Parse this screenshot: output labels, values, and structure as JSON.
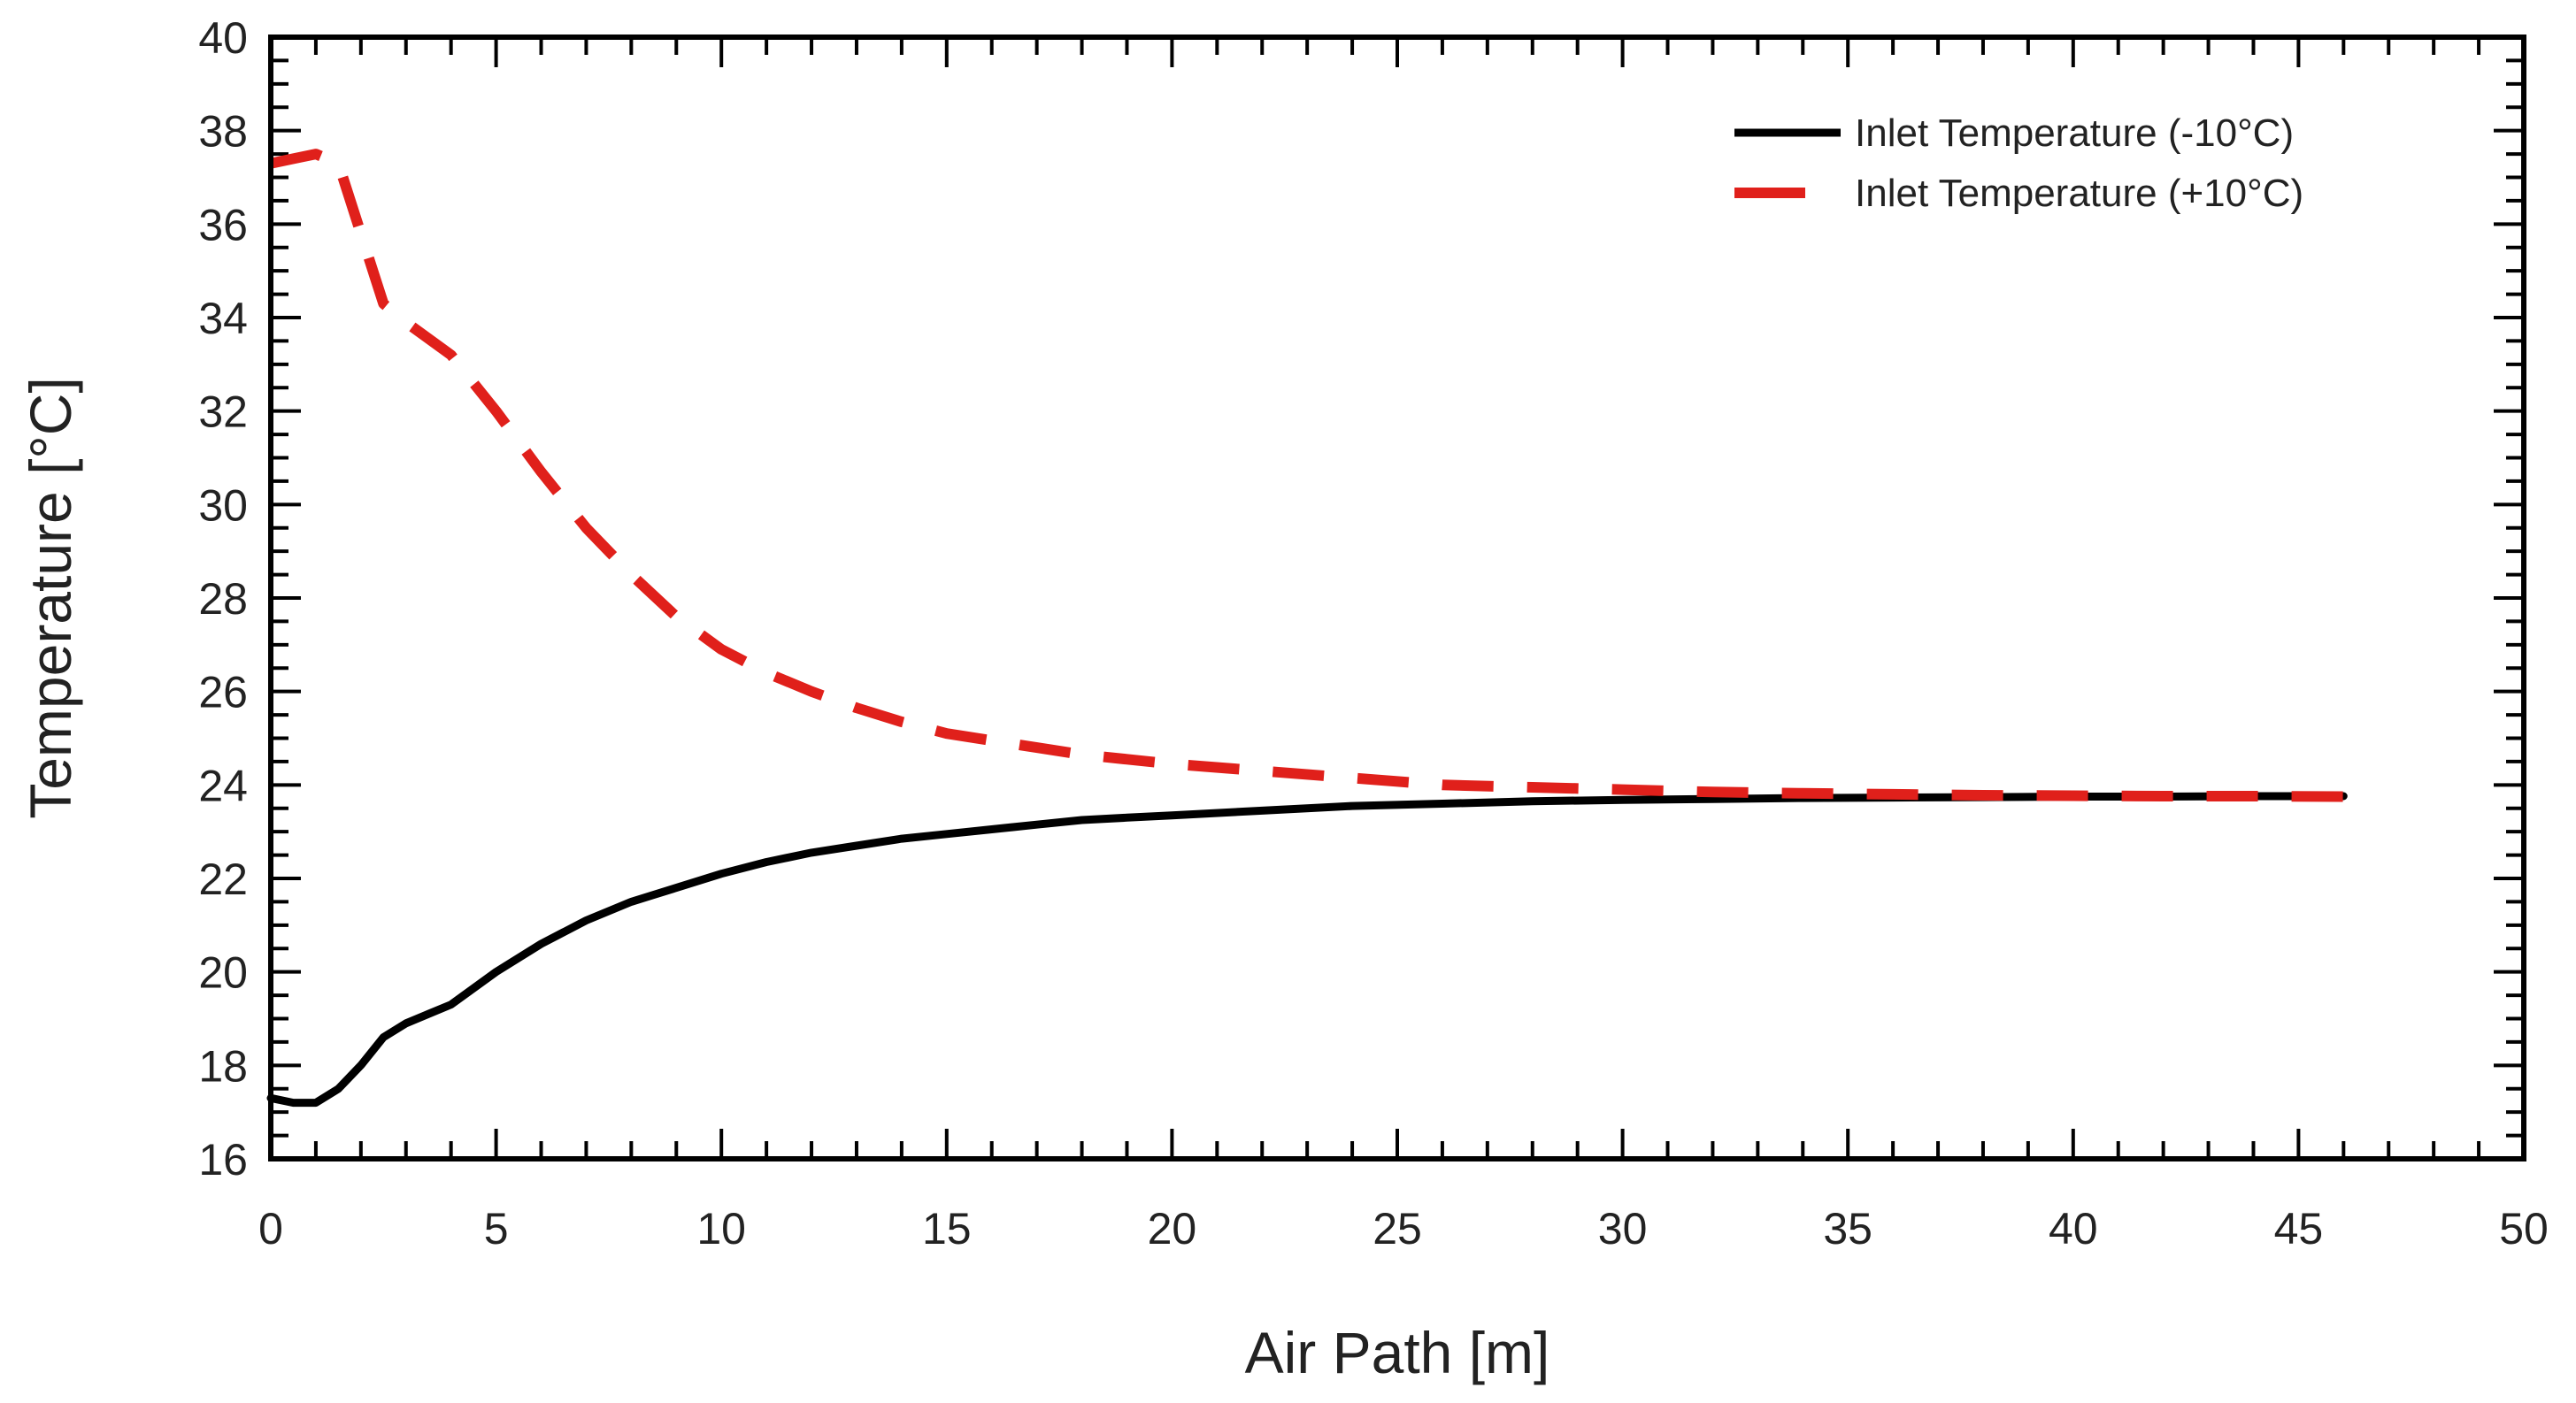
{
  "chart_data": {
    "type": "line",
    "title": "",
    "xlabel": "Air Path [m]",
    "ylabel": "Temperature [°C]",
    "xlim": [
      0,
      50
    ],
    "ylim": [
      16,
      40
    ],
    "x_ticks": [
      0,
      5,
      10,
      15,
      20,
      25,
      30,
      35,
      40,
      45,
      50
    ],
    "y_ticks": [
      16,
      18,
      20,
      22,
      24,
      26,
      28,
      30,
      32,
      34,
      36,
      38,
      40
    ],
    "x_minor_step": 1,
    "y_minor_step": 0.5,
    "grid": false,
    "legend_position": "top-right",
    "series": [
      {
        "name": "Inlet Temperature (-10°C)",
        "color": "#000000",
        "style": "solid",
        "x": [
          0,
          0.5,
          1,
          1.5,
          2,
          2.5,
          3,
          3.5,
          4,
          5,
          6,
          7,
          8,
          9,
          10,
          11,
          12,
          13,
          14,
          15,
          16,
          17,
          18,
          19,
          20,
          22,
          24,
          26,
          28,
          30,
          32,
          34,
          36,
          38,
          40,
          42,
          44,
          46
        ],
        "values": [
          17.3,
          17.2,
          17.2,
          17.5,
          18.0,
          18.6,
          18.9,
          19.1,
          19.3,
          20.0,
          20.6,
          21.1,
          21.5,
          21.8,
          22.1,
          22.35,
          22.55,
          22.7,
          22.85,
          22.95,
          23.05,
          23.15,
          23.25,
          23.3,
          23.35,
          23.45,
          23.55,
          23.6,
          23.65,
          23.68,
          23.7,
          23.72,
          23.73,
          23.74,
          23.75,
          23.75,
          23.76,
          23.76
        ]
      },
      {
        "name": "Inlet Temperature (+10°C)",
        "color": "#e0201b",
        "style": "dashed",
        "x": [
          0,
          0.5,
          1,
          1.5,
          2,
          2.5,
          3,
          4,
          5,
          6,
          7,
          8,
          9,
          10,
          11,
          12,
          13,
          14,
          15,
          16,
          17,
          18,
          19,
          20,
          22,
          24,
          26,
          28,
          30,
          32,
          34,
          36,
          38,
          40,
          42,
          44,
          46
        ],
        "values": [
          37.3,
          37.4,
          37.5,
          37.3,
          35.8,
          34.3,
          33.9,
          33.2,
          32.0,
          30.7,
          29.5,
          28.5,
          27.6,
          26.9,
          26.4,
          26.0,
          25.65,
          25.35,
          25.1,
          24.95,
          24.8,
          24.65,
          24.55,
          24.45,
          24.3,
          24.15,
          24.0,
          23.95,
          23.9,
          23.85,
          23.82,
          23.8,
          23.78,
          23.77,
          23.76,
          23.76,
          23.75
        ]
      }
    ]
  }
}
